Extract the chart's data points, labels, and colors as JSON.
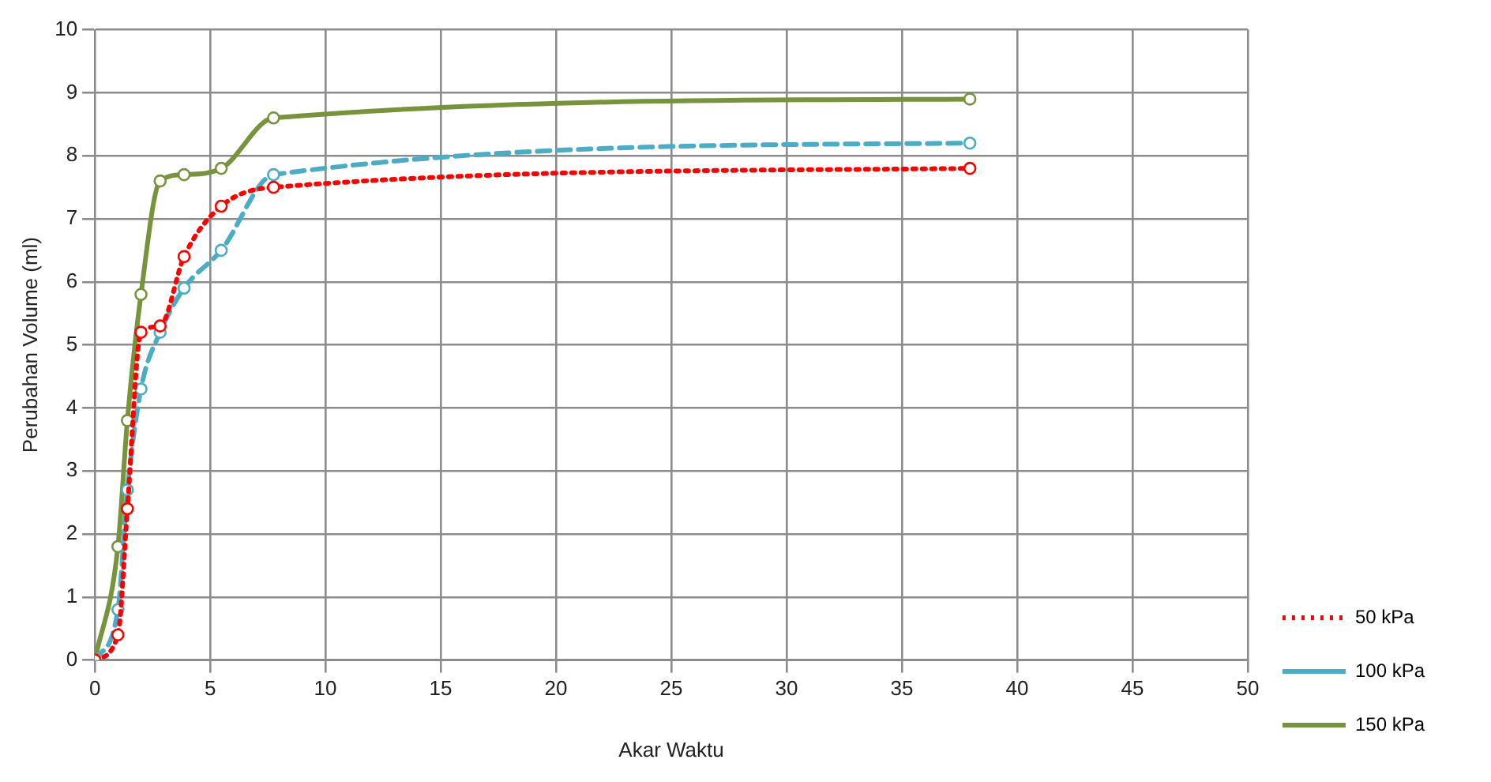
{
  "chart_data": {
    "type": "line",
    "xlabel": "Akar Waktu",
    "ylabel": "Perubahan Volume (ml)",
    "xlim": [
      0,
      50
    ],
    "xticks": [
      0,
      5,
      10,
      15,
      20,
      25,
      30,
      35,
      40,
      45,
      50
    ],
    "ylim": [
      0,
      10
    ],
    "yticks": [
      0,
      1,
      2,
      3,
      4,
      5,
      6,
      7,
      8,
      9,
      10
    ],
    "grid": true,
    "legend": "right",
    "marker": "circle",
    "x": [
      0,
      1,
      1.41,
      2,
      2.83,
      3.87,
      5.48,
      7.75,
      37.95
    ],
    "series": [
      {
        "name": "50 kPa",
        "color": "#ff0000",
        "line_style": "dotted",
        "values": [
          0,
          0.4,
          2.4,
          5.2,
          5.3,
          6.4,
          7.2,
          7.5,
          7.8
        ]
      },
      {
        "name": "100 kPa",
        "color": "#4bacc6",
        "line_style": "dashed",
        "values": [
          0,
          0.8,
          2.7,
          4.3,
          5.2,
          5.9,
          6.5,
          7.7,
          8.2
        ]
      },
      {
        "name": "150 kPa",
        "color": "#77933c",
        "line_style": "solid",
        "values": [
          0,
          1.8,
          3.8,
          5.8,
          7.6,
          7.7,
          7.8,
          8.6,
          8.9
        ]
      }
    ]
  }
}
